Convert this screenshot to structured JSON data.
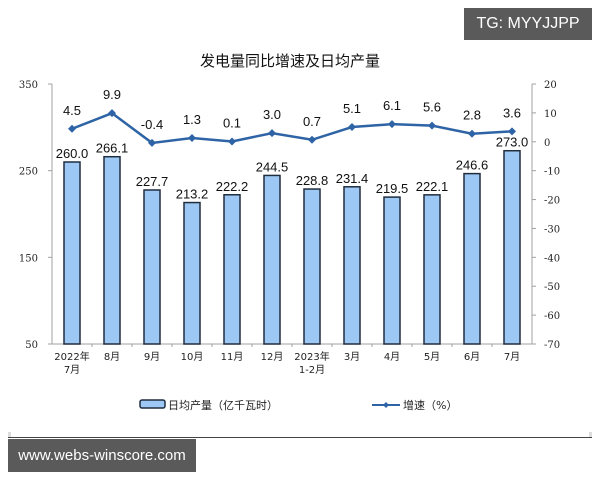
{
  "watermarks": {
    "top": "TG: MYYJJPP",
    "bottom": "www.webs-winscore.com"
  },
  "colors": {
    "bar_fill": "#9dc8f5",
    "bar_stroke": "#1f2d3d",
    "line": "#2e64a6",
    "axis": "#a0a0a0"
  },
  "chart_data": {
    "type": "bar+line",
    "title": "发电量同比增速及日均产量",
    "categories": [
      "2022年\n7月",
      "8月",
      "9月",
      "10月",
      "11月",
      "12月",
      "2023年\n1-2月",
      "3月",
      "4月",
      "5月",
      "6月",
      "7月"
    ],
    "category_lines": [
      [
        "2022年",
        "7月"
      ],
      [
        "8月"
      ],
      [
        "9月"
      ],
      [
        "10月"
      ],
      [
        "11月"
      ],
      [
        "12月"
      ],
      [
        "2023年",
        "1-2月"
      ],
      [
        "3月"
      ],
      [
        "4月"
      ],
      [
        "5月"
      ],
      [
        "6月"
      ],
      [
        "7月"
      ]
    ],
    "series": [
      {
        "name": "日均产量（亿千瓦时）",
        "type": "bar",
        "axis": "left",
        "values": [
          260.0,
          266.1,
          227.7,
          213.2,
          222.2,
          244.5,
          228.8,
          231.4,
          219.5,
          222.1,
          246.6,
          273.0
        ],
        "labels": [
          "260.0",
          "266.1",
          "227.7",
          "213.2",
          "222.2",
          "244.5",
          "228.8",
          "231.4",
          "219.5",
          "222.1",
          "246.6",
          "273.0"
        ]
      },
      {
        "name": "增速（%）",
        "type": "line",
        "axis": "right",
        "values": [
          4.5,
          9.9,
          -0.4,
          1.3,
          0.1,
          3.0,
          0.7,
          5.1,
          6.1,
          5.6,
          2.8,
          3.6
        ],
        "labels": [
          "4.5",
          "9.9",
          "-0.4",
          "1.3",
          "0.1",
          "3.0",
          "0.7",
          "5.1",
          "6.1",
          "5.6",
          "2.8",
          "3.6"
        ]
      }
    ],
    "left_axis": {
      "ticks": [
        "350",
        "250",
        "150",
        "50"
      ],
      "tick_values": [
        350,
        250,
        150,
        50
      ],
      "ylim": [
        50,
        350
      ]
    },
    "right_axis": {
      "ticks": [
        "20",
        "10",
        "0",
        "-10",
        "-20",
        "-30",
        "-40",
        "-50",
        "-60",
        "-70"
      ],
      "tick_values": [
        20,
        10,
        0,
        -10,
        -20,
        -30,
        -40,
        -50,
        -60,
        -70
      ],
      "ylim": [
        -70,
        20
      ]
    },
    "legend": {
      "position": "bottom",
      "items": [
        "日均产量（亿千瓦时）",
        "增速（%）"
      ]
    },
    "grid": false
  }
}
